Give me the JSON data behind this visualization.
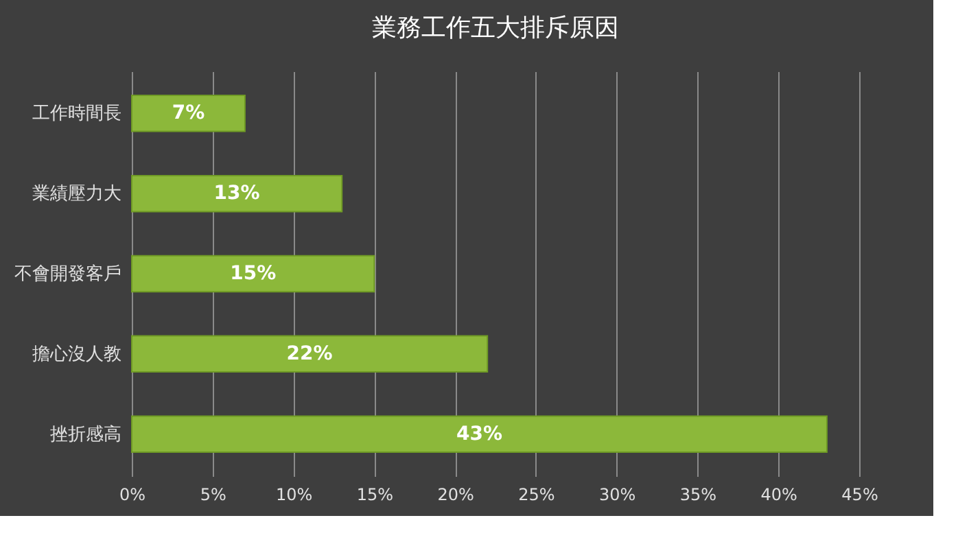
{
  "chart_data": {
    "type": "bar",
    "orientation": "horizontal",
    "title": "業務工作五大排斥原因",
    "categories": [
      "工作時間長",
      "業績壓力大",
      "不會開發客戶",
      "擔心沒人教",
      "挫折感高"
    ],
    "values": [
      7,
      13,
      15,
      22,
      43
    ],
    "color": "#8cb83a",
    "value_labels": [
      "7%",
      "13%",
      "15%",
      "22%",
      "43%"
    ],
    "xlim": [
      0,
      45
    ],
    "xticks": [
      {
        "value": 0,
        "label": "0%"
      },
      {
        "value": 5,
        "label": "5%"
      },
      {
        "value": 10,
        "label": "10%"
      },
      {
        "value": 15,
        "label": "15%"
      },
      {
        "value": 20,
        "label": "20%"
      },
      {
        "value": 25,
        "label": "25%"
      },
      {
        "value": 30,
        "label": "30%"
      },
      {
        "value": 35,
        "label": "35%"
      },
      {
        "value": 40,
        "label": "40%"
      },
      {
        "value": 45,
        "label": "45%"
      }
    ],
    "grid": "x"
  }
}
